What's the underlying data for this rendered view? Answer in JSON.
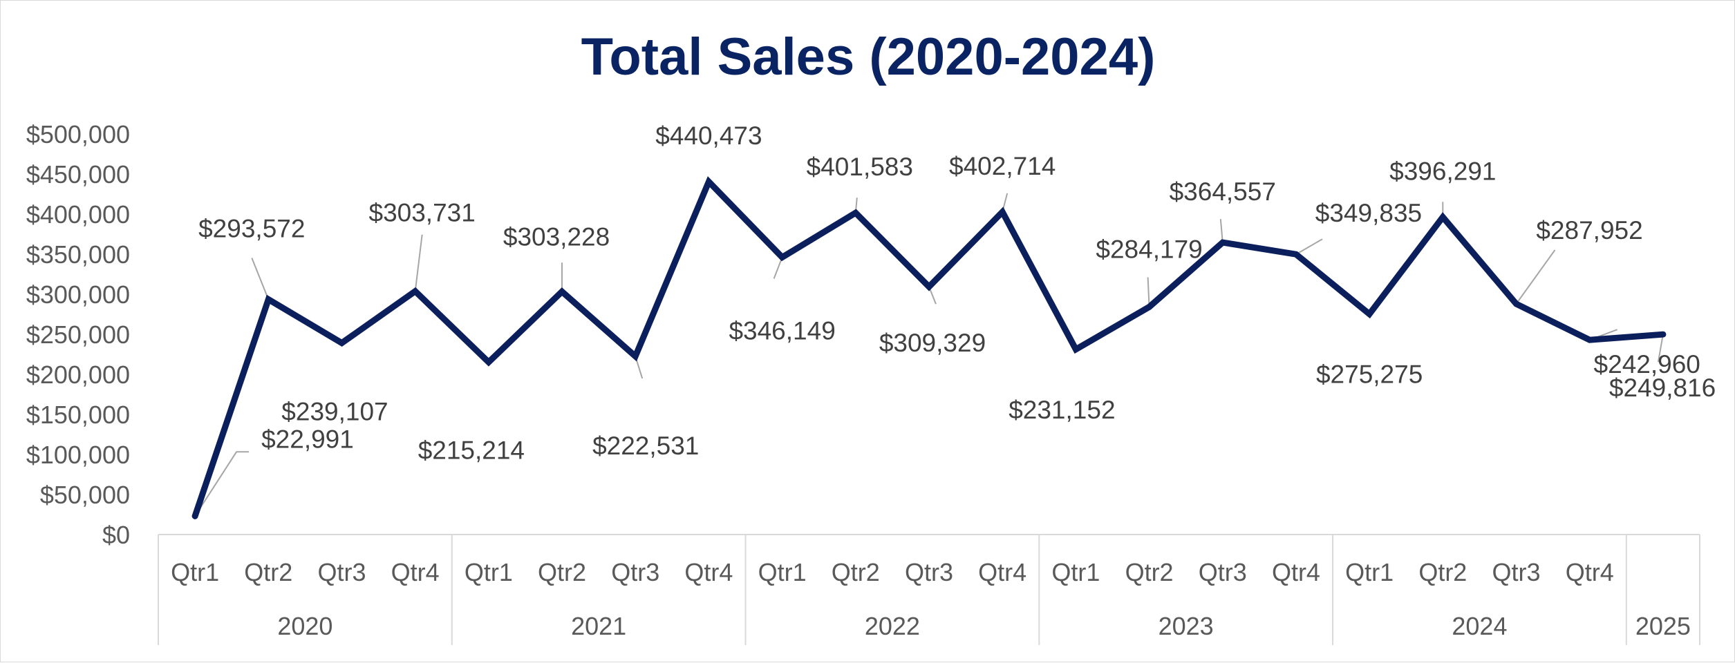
{
  "chart_data": {
    "type": "line",
    "title": "Total Sales (2020-2024)",
    "ylim": [
      0,
      500000
    ],
    "y_ticks": [
      "$0",
      "$50,000",
      "$100,000",
      "$150,000",
      "$200,000",
      "$250,000",
      "$300,000",
      "$350,000",
      "$400,000",
      "$450,000",
      "$500,000"
    ],
    "grid": false,
    "legend": "none",
    "x_levels": {
      "quarters": [
        "Qtr1",
        "Qtr2",
        "Qtr3",
        "Qtr4",
        "Qtr1",
        "Qtr2",
        "Qtr3",
        "Qtr4",
        "Qtr1",
        "Qtr2",
        "Qtr3",
        "Qtr4",
        "Qtr1",
        "Qtr2",
        "Qtr3",
        "Qtr4",
        "Qtr1",
        "Qtr2",
        "Qtr3",
        "Qtr4",
        ""
      ],
      "years": [
        {
          "label": "2020",
          "span": 4
        },
        {
          "label": "2021",
          "span": 4
        },
        {
          "label": "2022",
          "span": 4
        },
        {
          "label": "2023",
          "span": 4
        },
        {
          "label": "2024",
          "span": 4
        },
        {
          "label": "2025",
          "span": 1
        }
      ]
    },
    "series": [
      {
        "values": [
          22991,
          293572,
          239107,
          303731,
          215214,
          303228,
          222531,
          440473,
          346149,
          401583,
          309329,
          402714,
          231152,
          284179,
          364557,
          349835,
          275275,
          396291,
          287952,
          242960,
          249816
        ],
        "labels": [
          "$22,991",
          "$293,572",
          "$239,107",
          "$303,731",
          "$215,214",
          "$303,228",
          "$222,531",
          "$440,473",
          "$346,149",
          "$401,583",
          "$309,329",
          "$402,714",
          "$231,152",
          "$284,179",
          "$364,557",
          "$349,835",
          "$275,275",
          "$396,291",
          "$287,952",
          "$242,960",
          "$249,816"
        ],
        "color": "#0a1f5c"
      }
    ],
    "colors": {
      "title": "#0a2463",
      "axis_text": "#595959",
      "label_text": "#404040",
      "axis_line": "#d9d9d9",
      "leader_line": "#a6a6a6"
    }
  }
}
